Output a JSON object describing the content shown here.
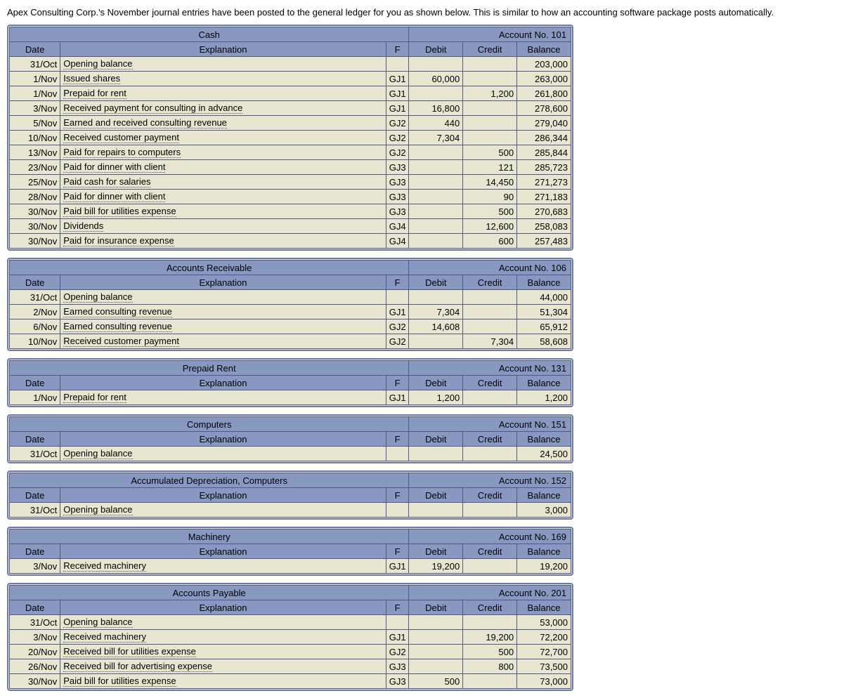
{
  "intro_text": "Apex Consulting Corp.'s November journal entries have been posted to the general ledger for you as shown below. This is similar to how an accounting software package posts automatically.",
  "colors": {
    "header_bg": "#8898c0",
    "body_bg": "#e8e5d0",
    "border": "#4b5a88",
    "outer_border": "#6b7aa8"
  },
  "column_headers": {
    "date": "Date",
    "explanation": "Explanation",
    "f": "F",
    "debit": "Debit",
    "credit": "Credit",
    "balance": "Balance"
  },
  "account_no_label": "Account No.",
  "ledgers": [
    {
      "name": "Cash",
      "account_no": "101",
      "rows": [
        {
          "date": "31/Oct",
          "expl": "Opening balance",
          "f": "",
          "debit": "",
          "credit": "",
          "balance": "203,000"
        },
        {
          "date": "1/Nov",
          "expl": "Issued shares",
          "f": "GJ1",
          "debit": "60,000",
          "credit": "",
          "balance": "263,000"
        },
        {
          "date": "1/Nov",
          "expl": "Prepaid for rent",
          "f": "GJ1",
          "debit": "",
          "credit": "1,200",
          "balance": "261,800"
        },
        {
          "date": "3/Nov",
          "expl": "Received payment for consulting in advance",
          "f": "GJ1",
          "debit": "16,800",
          "credit": "",
          "balance": "278,600"
        },
        {
          "date": "5/Nov",
          "expl": "Earned and received consulting revenue",
          "f": "GJ2",
          "debit": "440",
          "credit": "",
          "balance": "279,040"
        },
        {
          "date": "10/Nov",
          "expl": "Received customer payment",
          "f": "GJ2",
          "debit": "7,304",
          "credit": "",
          "balance": "286,344"
        },
        {
          "date": "13/Nov",
          "expl": "Paid for repairs to computers",
          "f": "GJ2",
          "debit": "",
          "credit": "500",
          "balance": "285,844"
        },
        {
          "date": "23/Nov",
          "expl": "Paid for dinner with client",
          "f": "GJ3",
          "debit": "",
          "credit": "121",
          "balance": "285,723"
        },
        {
          "date": "25/Nov",
          "expl": "Paid cash for salaries",
          "f": "GJ3",
          "debit": "",
          "credit": "14,450",
          "balance": "271,273"
        },
        {
          "date": "28/Nov",
          "expl": "Paid for dinner with client",
          "f": "GJ3",
          "debit": "",
          "credit": "90",
          "balance": "271,183"
        },
        {
          "date": "30/Nov",
          "expl": "Paid bill for utilities expense",
          "f": "GJ3",
          "debit": "",
          "credit": "500",
          "balance": "270,683"
        },
        {
          "date": "30/Nov",
          "expl": "Dividends",
          "f": "GJ4",
          "debit": "",
          "credit": "12,600",
          "balance": "258,083"
        },
        {
          "date": "30/Nov",
          "expl": "Paid for insurance expense",
          "f": "GJ4",
          "debit": "",
          "credit": "600",
          "balance": "257,483"
        }
      ]
    },
    {
      "name": "Accounts Receivable",
      "account_no": "106",
      "rows": [
        {
          "date": "31/Oct",
          "expl": "Opening balance",
          "f": "",
          "debit": "",
          "credit": "",
          "balance": "44,000"
        },
        {
          "date": "2/Nov",
          "expl": "Earned consulting revenue",
          "f": "GJ1",
          "debit": "7,304",
          "credit": "",
          "balance": "51,304"
        },
        {
          "date": "6/Nov",
          "expl": "Earned consulting revenue",
          "f": "GJ2",
          "debit": "14,608",
          "credit": "",
          "balance": "65,912"
        },
        {
          "date": "10/Nov",
          "expl": "Received customer payment",
          "f": "GJ2",
          "debit": "",
          "credit": "7,304",
          "balance": "58,608"
        }
      ]
    },
    {
      "name": "Prepaid Rent",
      "account_no": "131",
      "rows": [
        {
          "date": "1/Nov",
          "expl": "Prepaid for rent",
          "f": "GJ1",
          "debit": "1,200",
          "credit": "",
          "balance": "1,200"
        }
      ]
    },
    {
      "name": "Computers",
      "account_no": "151",
      "rows": [
        {
          "date": "31/Oct",
          "expl": "Opening balance",
          "f": "",
          "debit": "",
          "credit": "",
          "balance": "24,500"
        }
      ]
    },
    {
      "name": "Accumulated Depreciation, Computers",
      "account_no": "152",
      "rows": [
        {
          "date": "31/Oct",
          "expl": "Opening balance",
          "f": "",
          "debit": "",
          "credit": "",
          "balance": "3,000"
        }
      ]
    },
    {
      "name": "Machinery",
      "account_no": "169",
      "rows": [
        {
          "date": "3/Nov",
          "expl": "Received machinery",
          "f": "GJ1",
          "debit": "19,200",
          "credit": "",
          "balance": "19,200"
        }
      ]
    },
    {
      "name": "Accounts Payable",
      "account_no": "201",
      "rows": [
        {
          "date": "31/Oct",
          "expl": "Opening balance",
          "f": "",
          "debit": "",
          "credit": "",
          "balance": "53,000"
        },
        {
          "date": "3/Nov",
          "expl": "Received machinery",
          "f": "GJ1",
          "debit": "",
          "credit": "19,200",
          "balance": "72,200"
        },
        {
          "date": "20/Nov",
          "expl": "Received bill for utilities expense",
          "f": "GJ2",
          "debit": "",
          "credit": "500",
          "balance": "72,700"
        },
        {
          "date": "26/Nov",
          "expl": "Received bill for advertising expense",
          "f": "GJ3",
          "debit": "",
          "credit": "800",
          "balance": "73,500"
        },
        {
          "date": "30/Nov",
          "expl": "Paid bill for utilities expense",
          "f": "GJ3",
          "debit": "500",
          "credit": "",
          "balance": "73,000"
        }
      ]
    }
  ]
}
